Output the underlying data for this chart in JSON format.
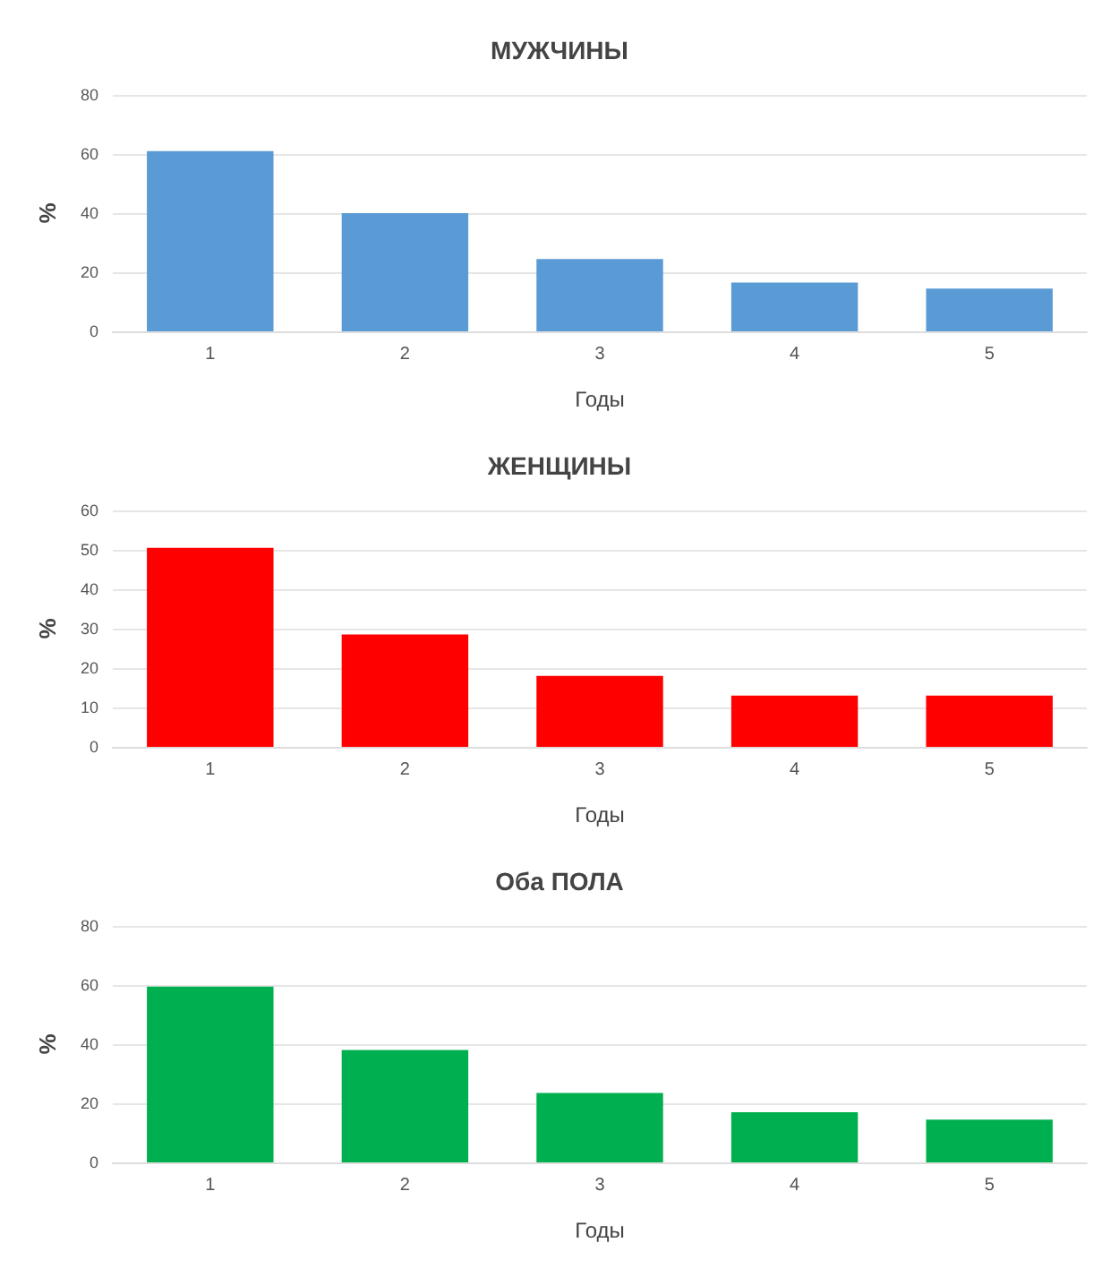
{
  "chart_data": [
    {
      "type": "bar",
      "title": "МУЖЧИНЫ",
      "xlabel": "Годы",
      "ylabel": "%",
      "categories": [
        "1",
        "2",
        "3",
        "4",
        "5"
      ],
      "series": [
        {
          "color": "#5b9bd5",
          "values": [
            61,
            40,
            24.5,
            16.5,
            14.5
          ]
        }
      ],
      "ylim": [
        0,
        80
      ],
      "yticks": [
        0,
        20,
        40,
        60,
        80
      ],
      "grid": "y"
    },
    {
      "type": "bar",
      "title": "ЖЕНЩИНЫ",
      "xlabel": "Годы",
      "ylabel": "%",
      "categories": [
        "1",
        "2",
        "3",
        "4",
        "5"
      ],
      "series": [
        {
          "color": "#ff0000",
          "values": [
            50.5,
            28.5,
            18,
            13,
            13
          ]
        }
      ],
      "ylim": [
        0,
        60
      ],
      "yticks": [
        0,
        10,
        20,
        30,
        40,
        50,
        60
      ],
      "grid": "y"
    },
    {
      "type": "bar",
      "title": "Оба ПОЛА",
      "xlabel": "Годы",
      "ylabel": "%",
      "categories": [
        "1",
        "2",
        "3",
        "4",
        "5"
      ],
      "series": [
        {
          "color": "#00b050",
          "values": [
            59.5,
            38,
            23.5,
            17,
            14.5
          ]
        }
      ],
      "ylim": [
        0,
        80
      ],
      "yticks": [
        0,
        20,
        40,
        60,
        80
      ],
      "grid": "y"
    }
  ]
}
